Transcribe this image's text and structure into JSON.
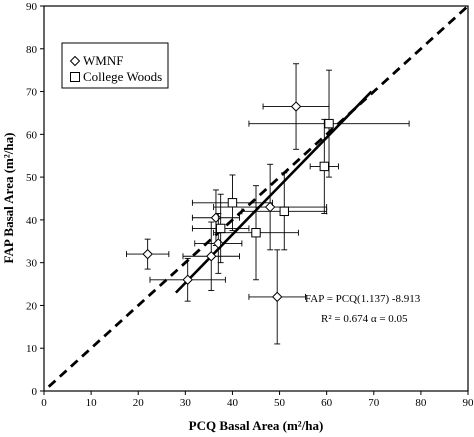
{
  "chart_data": {
    "type": "scatter",
    "xlabel": "PCQ Basal Area (m²/ha)",
    "ylabel": "FAP Basal Area (m²/ha)",
    "xlim": [
      0,
      90
    ],
    "ylim": [
      0,
      90
    ],
    "x_ticks": [
      "0",
      "10",
      "20",
      "30",
      "40",
      "50",
      "60",
      "70",
      "80",
      "90"
    ],
    "y_ticks": [
      "0",
      "10",
      "20",
      "30",
      "40",
      "50",
      "60",
      "70",
      "80",
      "90"
    ],
    "legend_position": "top-left",
    "series": [
      {
        "name": "WMNF",
        "marker": "diamond",
        "points": [
          {
            "x": 22,
            "y": 32,
            "xerr": 4.5,
            "yerr": 3.5
          },
          {
            "x": 30.5,
            "y": 26,
            "xerr": 8,
            "yerr": 5
          },
          {
            "x": 35.5,
            "y": 31.5,
            "xerr": 6,
            "yerr": 8
          },
          {
            "x": 36.5,
            "y": 40.5,
            "xerr": 5,
            "yerr": 6.5
          },
          {
            "x": 37,
            "y": 34.5,
            "xerr": 5,
            "yerr": 7
          },
          {
            "x": 48,
            "y": 43,
            "xerr": 12,
            "yerr": 10
          },
          {
            "x": 49.5,
            "y": 22,
            "xerr": 6,
            "yerr": 11
          },
          {
            "x": 53.5,
            "y": 66.5,
            "xerr": 7,
            "yerr": 10
          }
        ]
      },
      {
        "name": "College Woods",
        "marker": "square",
        "points": [
          {
            "x": 37.5,
            "y": 38,
            "xerr": 6,
            "yerr": 8
          },
          {
            "x": 40,
            "y": 44,
            "xerr": 8.5,
            "yerr": 6.5
          },
          {
            "x": 45,
            "y": 37,
            "xerr": 9,
            "yerr": 11
          },
          {
            "x": 51,
            "y": 42,
            "xerr": 9,
            "yerr": 9
          },
          {
            "x": 59.5,
            "y": 52.5,
            "xerr": 3,
            "yerr": 11
          },
          {
            "x": 60.5,
            "y": 62.5,
            "xerr": 17,
            "yerr": 12.5
          }
        ]
      }
    ],
    "lines": [
      {
        "name": "1:1",
        "style": "dashed",
        "x1": 1,
        "y1": 1,
        "x2": 90,
        "y2": 90
      },
      {
        "name": "regression",
        "style": "solid",
        "x1": 28,
        "y1": 23,
        "x2": 69.5,
        "y2": 70
      }
    ],
    "annotation": {
      "line1": "FAP = PCQ(1.137)  -8.913",
      "line2": "R² = 0.674   α = 0.05"
    }
  }
}
